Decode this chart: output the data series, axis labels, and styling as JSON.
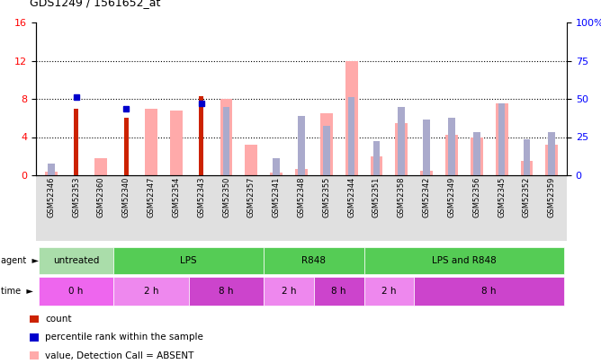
{
  "title": "GDS1249 / 1561652_at",
  "samples": [
    "GSM52346",
    "GSM52353",
    "GSM52360",
    "GSM52340",
    "GSM52347",
    "GSM52354",
    "GSM52343",
    "GSM52350",
    "GSM52357",
    "GSM52341",
    "GSM52348",
    "GSM52355",
    "GSM52344",
    "GSM52351",
    "GSM52358",
    "GSM52342",
    "GSM52349",
    "GSM52356",
    "GSM52345",
    "GSM52352",
    "GSM52359"
  ],
  "count_values": [
    null,
    7.0,
    null,
    6.0,
    null,
    null,
    8.3,
    null,
    null,
    null,
    null,
    null,
    null,
    null,
    null,
    null,
    null,
    null,
    null,
    null,
    null
  ],
  "percentile_rank_values": [
    null,
    8.2,
    null,
    7.0,
    null,
    null,
    7.5,
    null,
    null,
    null,
    null,
    null,
    null,
    null,
    null,
    null,
    null,
    null,
    null,
    null,
    null
  ],
  "absent_value_values": [
    0.4,
    null,
    1.8,
    null,
    7.0,
    6.8,
    null,
    8.0,
    3.2,
    0.3,
    0.7,
    6.5,
    12.0,
    2.0,
    5.5,
    0.5,
    4.2,
    4.0,
    7.5,
    1.5,
    3.2
  ],
  "absent_rank_values": [
    1.2,
    null,
    null,
    null,
    null,
    null,
    null,
    7.2,
    null,
    1.8,
    6.2,
    5.2,
    8.2,
    3.6,
    7.2,
    5.8,
    6.0,
    4.5,
    7.5,
    3.8,
    4.5
  ],
  "ylim_left": [
    0,
    16
  ],
  "ylim_right": [
    0,
    100
  ],
  "yticks_left": [
    0,
    4,
    8,
    12,
    16
  ],
  "yticks_right": [
    0,
    25,
    50,
    75,
    100
  ],
  "agent_groups": [
    {
      "label": "untreated",
      "start": 0,
      "end": 3,
      "color": "#AADDAA"
    },
    {
      "label": "LPS",
      "start": 3,
      "end": 9,
      "color": "#55CC55"
    },
    {
      "label": "R848",
      "start": 9,
      "end": 13,
      "color": "#55CC55"
    },
    {
      "label": "LPS and R848",
      "start": 13,
      "end": 21,
      "color": "#55CC55"
    }
  ],
  "time_groups": [
    {
      "label": "0 h",
      "start": 0,
      "end": 3,
      "color": "#EE66EE"
    },
    {
      "label": "2 h",
      "start": 3,
      "end": 6,
      "color": "#EE88EE"
    },
    {
      "label": "8 h",
      "start": 6,
      "end": 9,
      "color": "#CC44CC"
    },
    {
      "label": "2 h",
      "start": 9,
      "end": 11,
      "color": "#EE88EE"
    },
    {
      "label": "8 h",
      "start": 11,
      "end": 13,
      "color": "#CC44CC"
    },
    {
      "label": "2 h",
      "start": 13,
      "end": 15,
      "color": "#EE88EE"
    },
    {
      "label": "8 h",
      "start": 15,
      "end": 21,
      "color": "#CC44CC"
    }
  ],
  "count_color": "#CC2200",
  "percentile_color": "#0000CC",
  "absent_value_color": "#FFAAAA",
  "absent_rank_color": "#AAAACC",
  "hline_color": "black",
  "hline_ticks": [
    4,
    8,
    12
  ],
  "tick_label_bg": "#E0E0E0"
}
